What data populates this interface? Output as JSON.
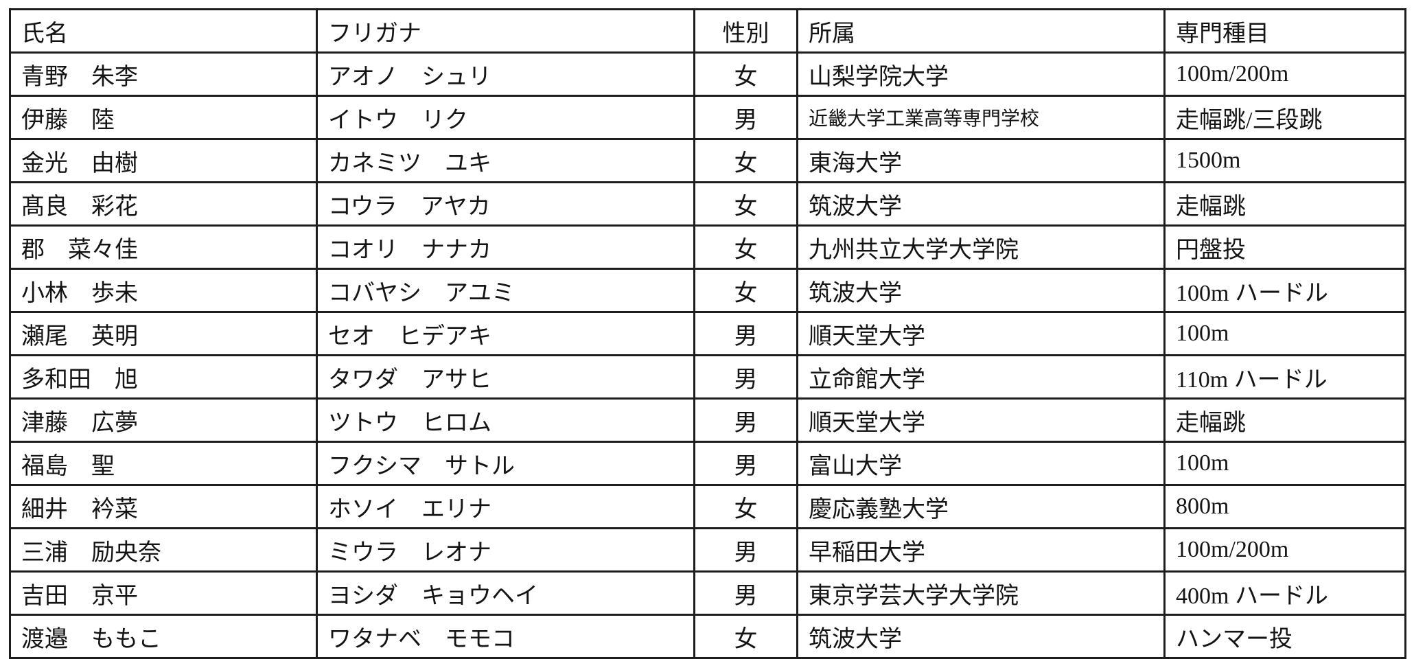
{
  "table": {
    "colors": {
      "border": "#1d1d1d",
      "text": "#141414",
      "background": "#ffffff"
    },
    "columns": [
      {
        "key": "name",
        "label": "氏名",
        "align": "left"
      },
      {
        "key": "furigana",
        "label": "フリガナ",
        "align": "left"
      },
      {
        "key": "gender",
        "label": "性別",
        "align": "center"
      },
      {
        "key": "affiliation",
        "label": "所属",
        "align": "left"
      },
      {
        "key": "event",
        "label": "専門種目",
        "align": "left"
      }
    ],
    "rows": [
      [
        "青野　朱李",
        "アオノ　シュリ",
        "女",
        "山梨学院大学",
        "100m/200m"
      ],
      [
        "伊藤　陸",
        "イトウ　リク",
        "男",
        "近畿大学工業高等専門学校",
        "走幅跳/三段跳"
      ],
      [
        "金光　由樹",
        "カネミツ　ユキ",
        "女",
        "東海大学",
        "1500m"
      ],
      [
        "髙良　彩花",
        "コウラ　アヤカ",
        "女",
        "筑波大学",
        "走幅跳"
      ],
      [
        "郡　菜々佳",
        "コオリ　ナナカ",
        "女",
        "九州共立大学大学院",
        "円盤投"
      ],
      [
        "小林　歩未",
        "コバヤシ　アユミ",
        "女",
        "筑波大学",
        "100m ハードル"
      ],
      [
        "瀬尾　英明",
        "セオ　ヒデアキ",
        "男",
        "順天堂大学",
        "100m"
      ],
      [
        "多和田　旭",
        "タワダ　アサヒ",
        "男",
        "立命館大学",
        "110m ハードル"
      ],
      [
        "津藤　広夢",
        "ツトウ　ヒロム",
        "男",
        "順天堂大学",
        "走幅跳"
      ],
      [
        "福島　聖",
        "フクシマ　サトル",
        "男",
        "富山大学",
        "100m"
      ],
      [
        "細井　衿菜",
        "ホソイ　エリナ",
        "女",
        "慶応義塾大学",
        "800m"
      ],
      [
        "三浦　励央奈",
        "ミウラ　レオナ",
        "男",
        "早稲田大学",
        "100m/200m"
      ],
      [
        "吉田　京平",
        "ヨシダ　キョウヘイ",
        "男",
        "東京学芸大学大学院",
        "400m ハードル"
      ],
      [
        "渡邉　ももこ",
        "ワタナベ　モモコ",
        "女",
        "筑波大学",
        "ハンマー投"
      ]
    ]
  }
}
